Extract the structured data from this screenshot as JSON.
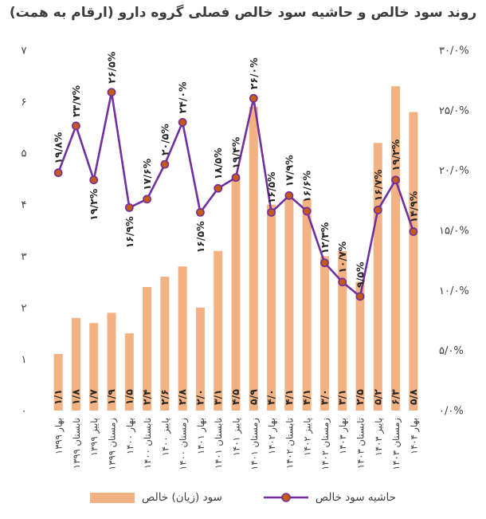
{
  "title": "روند سود خالص و حاشیه سود خالص فصلی گروه دارو (ارقام به همت)",
  "legend": {
    "bar_label": "سود (زیان) خالص",
    "line_label": "حاشیه سود خالص"
  },
  "colors": {
    "bar": "#F2B283",
    "line": "#7030A0",
    "marker_fill": "#C55A11",
    "marker_stroke": "#7030A0",
    "value_text": "#262626",
    "axis_text": "#3f3f3f",
    "title_text": "#3b3b3b"
  },
  "chart_data": {
    "type": "combo-bar-line",
    "title": "روند سود خالص و حاشیه سود خالص فصلی گروه دارو (ارقام به همت)",
    "grid": "off",
    "legend_position": "bottom",
    "categories": [
      "بهار ۱۳۹۹",
      "تابستان ۱۳۹۹",
      "پاییز ۱۳۹۹",
      "زمستان ۱۳۹۹",
      "بهار ۱۴۰۰",
      "تابستان ۱۴۰۰",
      "پاییز ۱۴۰۰",
      "زمستان ۱۴۰۰",
      "بهار ۱۴۰۱",
      "تابستان ۱۴۰۱",
      "پاییز ۱۴۰۱",
      "زمستان ۱۴۰۱",
      "بهار ۱۴۰۲",
      "تابستان ۱۴۰۲",
      "پاییز ۱۴۰۲",
      "زمستان ۱۴۰۲",
      "بهار ۱۴۰۳",
      "تابستان ۱۴۰۳",
      "پاییز ۱۴۰۳",
      "زمستان ۱۴۰۳",
      "بهار ۱۴۰۴"
    ],
    "series": [
      {
        "name": "سود (زیان) خالص",
        "type": "bar",
        "axis": "left",
        "values": [
          1.1,
          1.8,
          1.7,
          1.9,
          1.5,
          2.4,
          2.6,
          2.8,
          2.0,
          3.1,
          4.5,
          5.9,
          4.0,
          4.1,
          4.1,
          3.0,
          3.1,
          2.5,
          5.2,
          6.3,
          5.8
        ],
        "labels": [
          "۱/۱",
          "۱/۸",
          "۱/۷",
          "۱/۹",
          "۱/۵",
          "۲/۴",
          "۲/۶",
          "۲/۸",
          "۲/۰",
          "۳/۱",
          "۴/۵",
          "۵/۹",
          "۴/۰",
          "۴/۱",
          "۴/۱",
          "۳/۰",
          "۳/۱",
          "۲/۵",
          "۵/۲",
          "۶/۳",
          "۵/۸"
        ]
      },
      {
        "name": "حاشیه سود خالص",
        "type": "line",
        "axis": "right",
        "values": [
          19.8,
          23.7,
          19.2,
          26.5,
          16.9,
          17.6,
          20.5,
          24.0,
          16.5,
          18.5,
          19.4,
          26.0,
          16.5,
          17.9,
          16.6,
          12.3,
          10.7,
          9.5,
          16.7,
          19.2,
          14.9
        ],
        "labels": [
          "۱۹/۸%",
          "۲۳/۷%",
          "۱۹/۲%",
          "۲۶/۵%",
          "۱۶/۹%",
          "۱۷/۶%",
          "۲۰/۵%",
          "۲۴/۰%",
          "۱۶/۵%",
          "۱۸/۵%",
          "۱۹/۴%",
          "۲۶/۰%",
          "۱۶/۵%",
          "۱۷/۹%",
          "۱۶/۶%",
          "۱۲/۳%",
          "۱۰/۷%",
          "۹/۵%",
          "۱۶/۷%",
          "۱۹/۲%",
          "۱۴/۹%"
        ],
        "label_position": [
          "above",
          "above",
          "below",
          "above",
          "below",
          "above",
          "above",
          "above",
          "below",
          "above",
          "above",
          "above",
          "above",
          "above",
          "above",
          "above",
          "above",
          "above",
          "above",
          "above",
          "above"
        ]
      }
    ],
    "left_axis": {
      "min": 0,
      "max": 7,
      "tick_labels": [
        "۰",
        "۱",
        "۲",
        "۳",
        "۴",
        "۵",
        "۶",
        "۷"
      ]
    },
    "right_axis": {
      "min": 0,
      "max": 30,
      "step": 5,
      "tick_labels": [
        "۰/۰%",
        "۵/۰%",
        "۱۰/۰%",
        "۱۵/۰%",
        "۲۰/۰%",
        "۲۵/۰%",
        "۳۰/۰%"
      ]
    }
  }
}
